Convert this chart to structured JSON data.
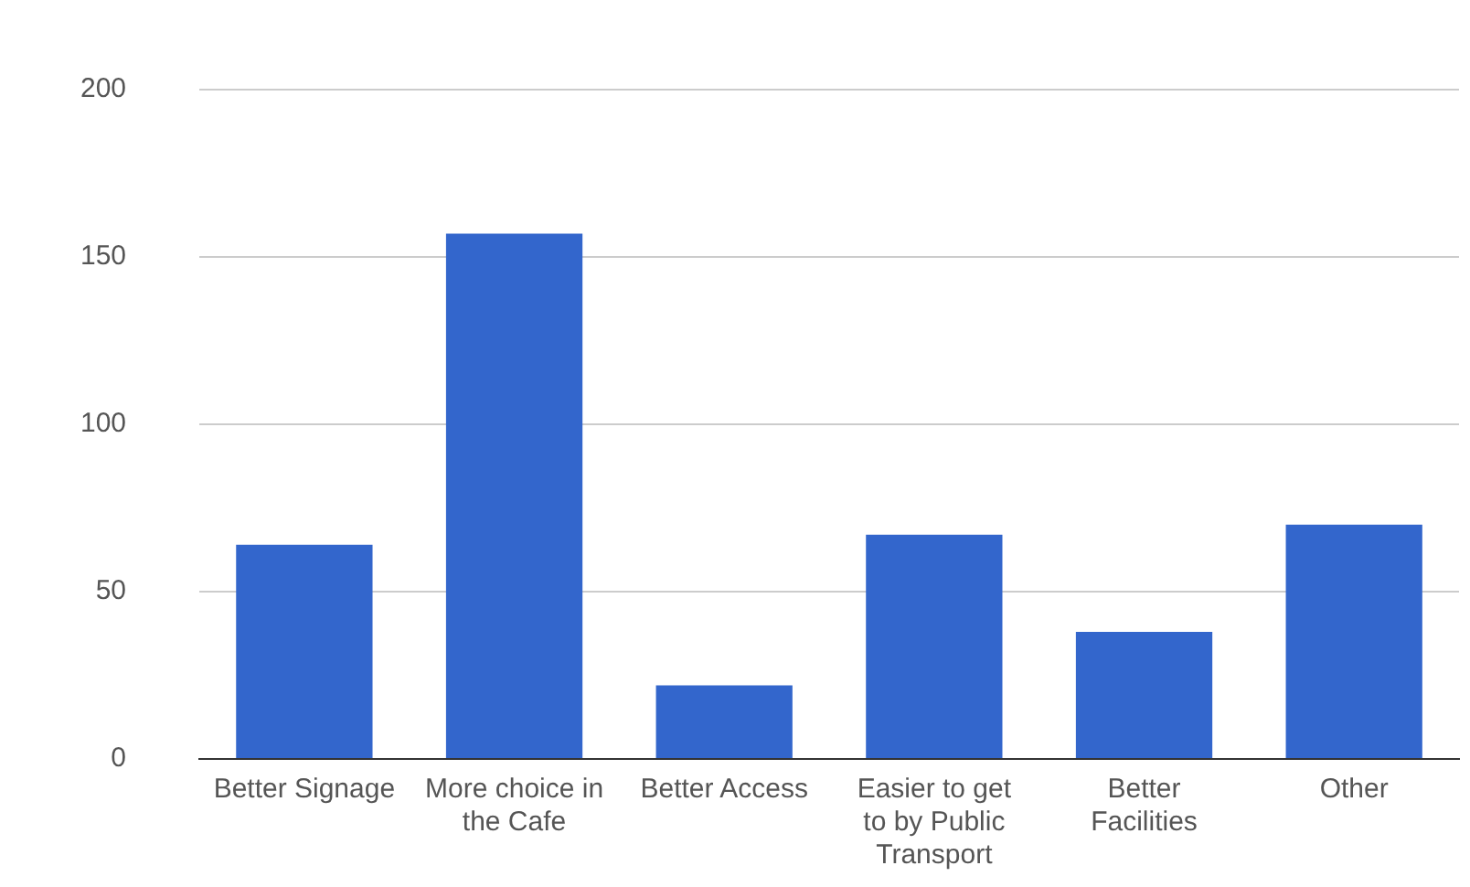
{
  "chart_data": {
    "type": "bar",
    "categories": [
      "Better Signage",
      "More choice in the Cafe",
      "Better Access",
      "Easier to get to by Public Transport",
      "Better Facilities",
      "Other"
    ],
    "values": [
      64,
      157,
      22,
      67,
      38,
      70
    ],
    "color": "#3366cc",
    "ylim": [
      0,
      200
    ],
    "yticks": [
      0,
      50,
      100,
      150,
      200
    ],
    "grid": "y",
    "legend": false
  }
}
